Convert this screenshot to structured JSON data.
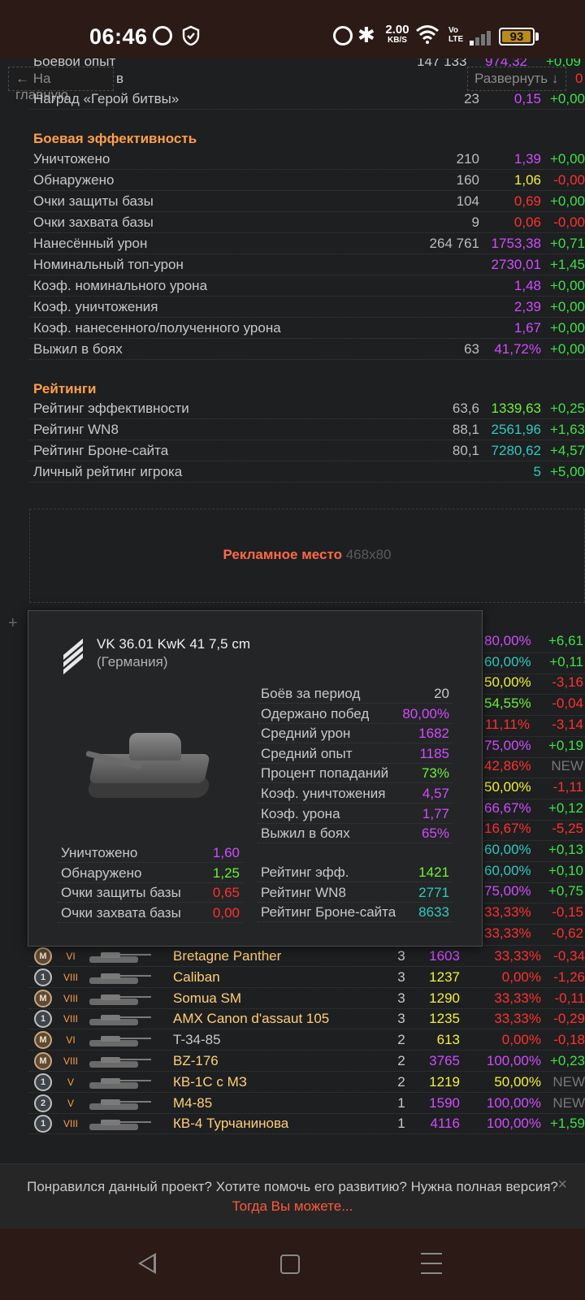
{
  "status_bar": {
    "time": "06:46",
    "speed_top": "2.00",
    "speed_bottom": "KB/S",
    "volte_top": "Vo",
    "volte_bottom": "LTE",
    "battery": "93",
    "battery_level_pct": 93
  },
  "nav": {
    "home_label": "← На главную",
    "expand_label": "Развернуть ↓",
    "partial_text": "Боевой опыт",
    "partial_v1": "147 133",
    "partial_v2": "974,32",
    "partial_v3": "+0,09",
    "partial_b": "в",
    "partial_c": "0"
  },
  "rows_top": [
    {
      "label": "Наград «Герой битвы»",
      "v1": "23",
      "v2": "0,15",
      "v2_color": "#d04cff",
      "v3": "+0,00",
      "v3_color": "#3ee04a"
    }
  ],
  "section_effect": {
    "title": "Боевая эффективность",
    "rows": [
      {
        "label": "Уничтожено",
        "v1": "210",
        "v2": "1,39",
        "v2_color": "#d04cff",
        "v3": "+0,00",
        "v3_color": "#3ee04a"
      },
      {
        "label": "Обнаружено",
        "v1": "160",
        "v2": "1,06",
        "v2_color": "#f2f03a",
        "v3": "-0,00",
        "v3_color": "#ff3030"
      },
      {
        "label": "Очки защиты базы",
        "v1": "104",
        "v2": "0,69",
        "v2_color": "#ff3030",
        "v3": "+0,00",
        "v3_color": "#3ee04a"
      },
      {
        "label": "Очки захвата базы",
        "v1": "9",
        "v2": "0,06",
        "v2_color": "#ff3030",
        "v3": "-0,00",
        "v3_color": "#ff3030"
      },
      {
        "label": "Нанесённый урон",
        "v1": "264 761",
        "v2": "1753,38",
        "v2_color": "#d04cff",
        "v3": "+0,71",
        "v3_color": "#3ee04a"
      },
      {
        "label": "Номинальный топ-урон",
        "v1": "",
        "v2": "2730,01",
        "v2_color": "#d04cff",
        "v3": "+1,45",
        "v3_color": "#3ee04a"
      },
      {
        "label": "Коэф. номинального урона",
        "v1": "",
        "v2": "1,48",
        "v2_color": "#d04cff",
        "v3": "+0,00",
        "v3_color": "#3ee04a"
      },
      {
        "label": "Коэф. уничтожения",
        "v1": "",
        "v2": "2,39",
        "v2_color": "#d04cff",
        "v3": "+0,00",
        "v3_color": "#3ee04a"
      },
      {
        "label": "Коэф. нанесенного/полученного урона",
        "v1": "",
        "v2": "1,67",
        "v2_color": "#d04cff",
        "v3": "+0,00",
        "v3_color": "#3ee04a"
      },
      {
        "label": "Выжил в боях",
        "v1": "63",
        "v2": "41,72%",
        "v2_color": "#d04cff",
        "v3": "+0,00",
        "v3_color": "#3ee04a"
      }
    ]
  },
  "section_ratings": {
    "title": "Рейтинги",
    "rows": [
      {
        "label": "Рейтинг эффективности",
        "v1": "63,6",
        "v2": "1339,63",
        "v2_color": "#6df03a",
        "v3": "+0,25",
        "v3_color": "#3ee04a"
      },
      {
        "label": "Рейтинг WN8",
        "v1": "88,1",
        "v2": "2561,96",
        "v2_color": "#2ec9c0",
        "v3": "+1,63",
        "v3_color": "#3ee04a"
      },
      {
        "label": "Рейтинг Броне-сайта",
        "v1": "80,1",
        "v2": "7280,62",
        "v2_color": "#2ec9c0",
        "v3": "+4,57",
        "v3_color": "#3ee04a"
      },
      {
        "label": "Личный рейтинг игрока",
        "v1": "",
        "v2": "5",
        "v2_color": "#2ec9c0",
        "v3": "+5,00",
        "v3_color": "#3ee04a"
      }
    ]
  },
  "ad": {
    "label": "Рекламное место",
    "size": "468x80"
  },
  "bg_pct_rows": [
    {
      "pct": "80,00%",
      "pct_color": "#d04cff",
      "delta": "+6,61",
      "delta_color": "#3ee04a"
    },
    {
      "pct": "60,00%",
      "pct_color": "#2ec9c0",
      "delta": "+0,11",
      "delta_color": "#3ee04a"
    },
    {
      "pct": "50,00%",
      "pct_color": "#f2f03a",
      "delta": "-3,16",
      "delta_color": "#ff3030"
    },
    {
      "pct": "54,55%",
      "pct_color": "#6df03a",
      "delta": "-0,04",
      "delta_color": "#ff3030"
    },
    {
      "pct": "11,11%",
      "pct_color": "#ff3030",
      "delta": "-3,14",
      "delta_color": "#ff3030"
    },
    {
      "pct": "75,00%",
      "pct_color": "#d04cff",
      "delta": "+0,19",
      "delta_color": "#3ee04a"
    },
    {
      "pct": "42,86%",
      "pct_color": "#ff3030",
      "delta": "NEW",
      "delta_color": "#777777"
    },
    {
      "pct": "50,00%",
      "pct_color": "#f2f03a",
      "delta": "-1,11",
      "delta_color": "#ff3030"
    },
    {
      "pct": "66,67%",
      "pct_color": "#d04cff",
      "delta": "+0,12",
      "delta_color": "#3ee04a"
    },
    {
      "pct": "16,67%",
      "pct_color": "#ff3030",
      "delta": "-5,25",
      "delta_color": "#ff3030"
    },
    {
      "pct": "60,00%",
      "pct_color": "#2ec9c0",
      "delta": "+0,13",
      "delta_color": "#3ee04a"
    },
    {
      "pct": "60,00%",
      "pct_color": "#2ec9c0",
      "delta": "+0,10",
      "delta_color": "#3ee04a"
    },
    {
      "pct": "75,00%",
      "pct_color": "#d04cff",
      "delta": "+0,75",
      "delta_color": "#3ee04a"
    },
    {
      "pct": "33,33%",
      "pct_color": "#ff3030",
      "delta": "-0,15",
      "delta_color": "#ff3030"
    },
    {
      "pct": "33,33%",
      "pct_color": "#ff3030",
      "delta": "-0,62",
      "delta_color": "#ff3030"
    }
  ],
  "tanks": [
    {
      "mark": "M",
      "tier": "VI",
      "name": "Bretagne Panther",
      "battles": "3",
      "avg": "1603",
      "avg_color": "#d04cff",
      "pct": "33,33%",
      "pct_color": "#ff3030",
      "delta": "-0,34",
      "delta_color": "#ff3030"
    },
    {
      "mark": "1",
      "tier": "VIII",
      "name": "Caliban",
      "battles": "3",
      "avg": "1237",
      "avg_color": "#f2f03a",
      "pct": "0,00%",
      "pct_color": "#ff3030",
      "delta": "-1,26",
      "delta_color": "#ff3030"
    },
    {
      "mark": "M",
      "tier": "VIII",
      "name": "Somua SM",
      "battles": "3",
      "avg": "1290",
      "avg_color": "#f2f03a",
      "pct": "33,33%",
      "pct_color": "#ff3030",
      "delta": "-0,11",
      "delta_color": "#ff3030"
    },
    {
      "mark": "1",
      "tier": "VIII",
      "name": "AMX Canon d'assaut 105",
      "battles": "3",
      "avg": "1235",
      "avg_color": "#f2f03a",
      "pct": "33,33%",
      "pct_color": "#ff3030",
      "delta": "-0,29",
      "delta_color": "#ff3030"
    },
    {
      "mark": "M",
      "tier": "VI",
      "name": "T-34-85",
      "battles": "2",
      "avg": "613",
      "avg_color": "#f2f03a",
      "pct": "0,00%",
      "pct_color": "#ff3030",
      "delta": "-0,18",
      "delta_color": "#ff3030"
    },
    {
      "mark": "M",
      "tier": "VIII",
      "name": "BZ-176",
      "battles": "2",
      "avg": "3765",
      "avg_color": "#d04cff",
      "pct": "100,00%",
      "pct_color": "#d04cff",
      "delta": "+0,23",
      "delta_color": "#3ee04a"
    },
    {
      "mark": "1",
      "tier": "V",
      "name": "КВ-1С с МЗ",
      "battles": "2",
      "avg": "1219",
      "avg_color": "#f2f03a",
      "pct": "50,00%",
      "pct_color": "#f2f03a",
      "delta": "NEW",
      "delta_color": "#777777"
    },
    {
      "mark": "2",
      "tier": "V",
      "name": "M4-85",
      "battles": "1",
      "avg": "1590",
      "avg_color": "#d04cff",
      "pct": "100,00%",
      "pct_color": "#d04cff",
      "delta": "NEW",
      "delta_color": "#777777"
    },
    {
      "mark": "1",
      "tier": "VIII",
      "name": "КВ-4 Турчанинова",
      "battles": "1",
      "avg": "4116",
      "avg_color": "#d04cff",
      "pct": "100,00%",
      "pct_color": "#d04cff",
      "delta": "+1,59",
      "delta_color": "#3ee04a"
    }
  ],
  "popup": {
    "title": "VK 36.01 KwK 41 7,5 cm",
    "nation": "(Германия)",
    "right_rows": [
      {
        "label": "Боёв за период",
        "value": "20",
        "color": "#c8c8c8"
      },
      {
        "label": "Одержано побед",
        "value": "80,00%",
        "color": "#d04cff"
      },
      {
        "label": "Средний урон",
        "value": "1682",
        "color": "#d04cff"
      },
      {
        "label": "Средний опыт",
        "value": "1185",
        "color": "#d04cff"
      },
      {
        "label": "Процент попаданий",
        "value": "73%",
        "color": "#6df03a"
      },
      {
        "label": "Коэф. уничтожения",
        "value": "4,57",
        "color": "#d04cff"
      },
      {
        "label": "Коэф. урона",
        "value": "1,77",
        "color": "#d04cff"
      },
      {
        "label": "Выжил в боях",
        "value": "65%",
        "color": "#d04cff"
      }
    ],
    "left_rows": [
      {
        "label": "Уничтожено",
        "value": "1,60",
        "color": "#d04cff"
      },
      {
        "label": "Обнаружено",
        "value": "1,25",
        "color": "#6df03a"
      },
      {
        "label": "Очки защиты базы",
        "value": "0,65",
        "color": "#ff3030"
      },
      {
        "label": "Очки захвата базы",
        "value": "0,00",
        "color": "#ff3030"
      }
    ],
    "rating_rows": [
      {
        "label": "Рейтинг эфф.",
        "value": "1421",
        "color": "#6df03a"
      },
      {
        "label": "Рейтинг WN8",
        "value": "2771",
        "color": "#2ec9c0"
      },
      {
        "label": "Рейтинг Броне-сайта",
        "value": "8633",
        "color": "#2ec9c0"
      }
    ]
  },
  "footer": {
    "text": "Понравился данный проект? Хотите помочь его развитию? Нужна полная версия?",
    "link": "Тогда Вы можете...",
    "close": "×"
  },
  "icons": [
    "whatsapp-icon",
    "shield-icon",
    "alarm-icon",
    "bluetooth-icon",
    "wifi-icon",
    "signal-icon",
    "battery-icon",
    "back-icon",
    "home-icon",
    "menu-icon",
    "expand-plus-icon",
    "close-icon",
    "nation-emblem-icon",
    "mastery-badge-icon",
    "tank-silhouette-icon"
  ]
}
